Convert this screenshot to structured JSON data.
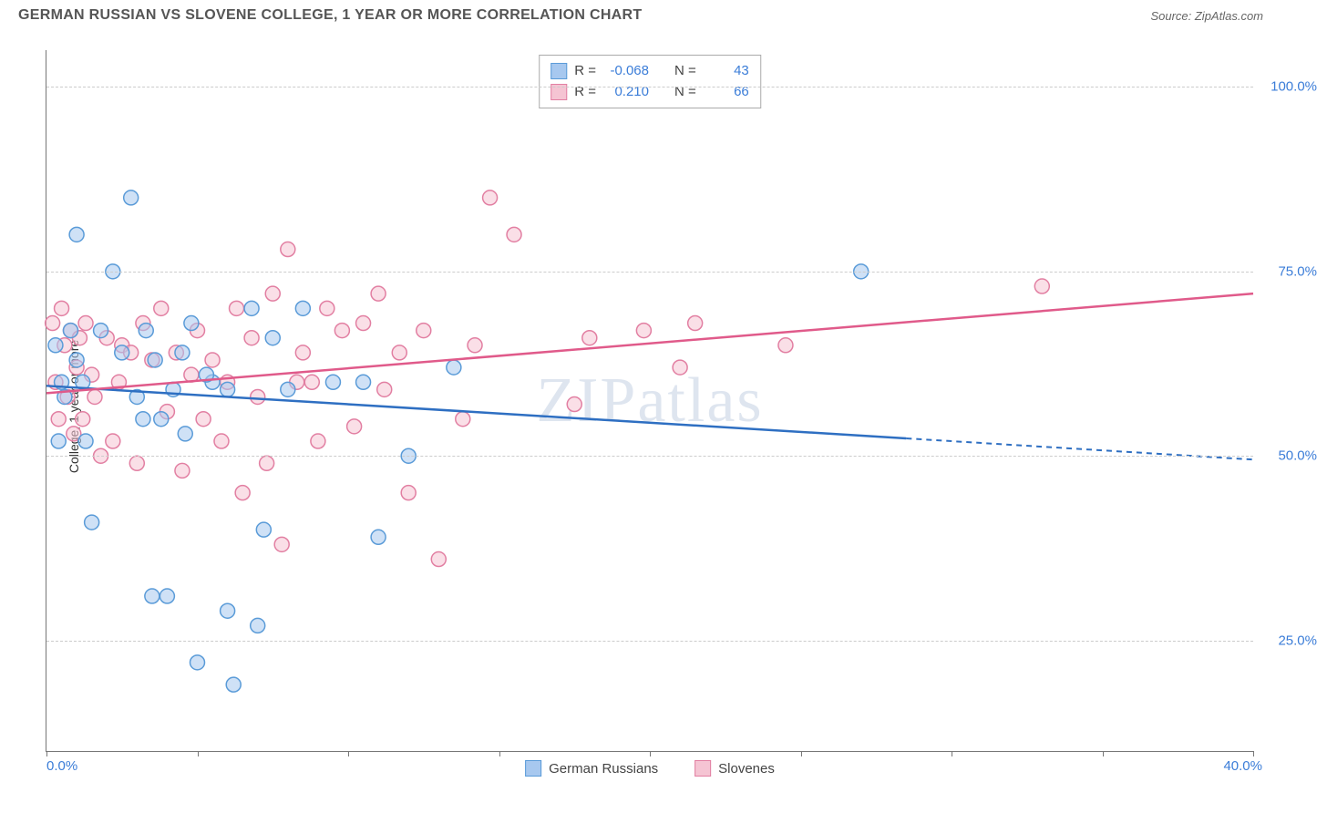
{
  "header": {
    "title": "GERMAN RUSSIAN VS SLOVENE COLLEGE, 1 YEAR OR MORE CORRELATION CHART",
    "source": "Source: ZipAtlas.com"
  },
  "y_axis": {
    "label": "College, 1 year or more",
    "ticks": [
      25,
      50,
      75,
      100
    ],
    "tick_labels": [
      "25.0%",
      "50.0%",
      "75.0%",
      "100.0%"
    ],
    "min": 10,
    "max": 105
  },
  "x_axis": {
    "ticks": [
      0,
      5,
      10,
      15,
      20,
      25,
      30,
      35,
      40
    ],
    "label_left": "0.0%",
    "label_right": "40.0%",
    "min": 0,
    "max": 40
  },
  "watermark": "ZIPatlas",
  "series": {
    "german_russians": {
      "label": "German Russians",
      "color_fill": "#a7c8ef",
      "color_stroke": "#5a9bd8",
      "line_color": "#2e6fc2",
      "r_value": "-0.068",
      "n_value": "43",
      "trend": {
        "x1": 0,
        "y1": 59.5,
        "x2": 40,
        "y2": 49.5,
        "solid_until_x": 28.5
      },
      "points": [
        [
          0.3,
          65
        ],
        [
          0.4,
          52
        ],
        [
          0.5,
          60
        ],
        [
          0.6,
          58
        ],
        [
          0.8,
          67
        ],
        [
          1.0,
          80
        ],
        [
          1.0,
          63
        ],
        [
          1.2,
          60
        ],
        [
          1.3,
          52
        ],
        [
          1.5,
          41
        ],
        [
          1.8,
          67
        ],
        [
          2.2,
          75
        ],
        [
          2.5,
          64
        ],
        [
          2.8,
          85
        ],
        [
          3.0,
          58
        ],
        [
          3.2,
          55
        ],
        [
          3.3,
          67
        ],
        [
          3.5,
          31
        ],
        [
          3.6,
          63
        ],
        [
          4.0,
          31
        ],
        [
          4.2,
          59
        ],
        [
          4.5,
          64
        ],
        [
          4.6,
          53
        ],
        [
          4.8,
          68
        ],
        [
          5.0,
          22
        ],
        [
          5.5,
          60
        ],
        [
          6.0,
          59
        ],
        [
          6.0,
          29
        ],
        [
          6.2,
          19
        ],
        [
          6.8,
          70
        ],
        [
          7.0,
          27
        ],
        [
          7.2,
          40
        ],
        [
          7.5,
          66
        ],
        [
          8.0,
          59
        ],
        [
          8.5,
          70
        ],
        [
          9.5,
          60
        ],
        [
          10.5,
          60
        ],
        [
          11.0,
          39
        ],
        [
          12.0,
          50
        ],
        [
          13.5,
          62
        ],
        [
          27.0,
          75
        ],
        [
          5.3,
          61
        ],
        [
          3.8,
          55
        ]
      ]
    },
    "slovenes": {
      "label": "Slovenes",
      "color_fill": "#f5c4d3",
      "color_stroke": "#e27fa2",
      "line_color": "#e05a8a",
      "r_value": "0.210",
      "n_value": "66",
      "trend": {
        "x1": 0,
        "y1": 58.5,
        "x2": 40,
        "y2": 72.0,
        "solid_until_x": 40
      },
      "points": [
        [
          0.2,
          68
        ],
        [
          0.3,
          60
        ],
        [
          0.4,
          55
        ],
        [
          0.5,
          70
        ],
        [
          0.6,
          65
        ],
        [
          0.7,
          58
        ],
        [
          0.8,
          67
        ],
        [
          0.9,
          53
        ],
        [
          1.0,
          62
        ],
        [
          1.1,
          66
        ],
        [
          1.2,
          55
        ],
        [
          1.3,
          68
        ],
        [
          1.5,
          61
        ],
        [
          1.6,
          58
        ],
        [
          1.8,
          50
        ],
        [
          2.0,
          66
        ],
        [
          2.2,
          52
        ],
        [
          2.4,
          60
        ],
        [
          2.5,
          65
        ],
        [
          2.8,
          64
        ],
        [
          3.0,
          49
        ],
        [
          3.2,
          68
        ],
        [
          3.5,
          63
        ],
        [
          3.8,
          70
        ],
        [
          4.0,
          56
        ],
        [
          4.3,
          64
        ],
        [
          4.5,
          48
        ],
        [
          4.8,
          61
        ],
        [
          5.0,
          67
        ],
        [
          5.2,
          55
        ],
        [
          5.5,
          63
        ],
        [
          5.8,
          52
        ],
        [
          6.0,
          60
        ],
        [
          6.3,
          70
        ],
        [
          6.5,
          45
        ],
        [
          6.8,
          66
        ],
        [
          7.0,
          58
        ],
        [
          7.3,
          49
        ],
        [
          7.5,
          72
        ],
        [
          7.8,
          38
        ],
        [
          8.0,
          78
        ],
        [
          8.3,
          60
        ],
        [
          8.5,
          64
        ],
        [
          9.0,
          52
        ],
        [
          9.3,
          70
        ],
        [
          9.8,
          67
        ],
        [
          10.2,
          54
        ],
        [
          10.5,
          68
        ],
        [
          11.0,
          72
        ],
        [
          11.2,
          59
        ],
        [
          11.7,
          64
        ],
        [
          12.0,
          45
        ],
        [
          12.5,
          67
        ],
        [
          13.0,
          36
        ],
        [
          13.8,
          55
        ],
        [
          14.2,
          65
        ],
        [
          14.7,
          85
        ],
        [
          15.5,
          80
        ],
        [
          17.5,
          57
        ],
        [
          18.0,
          66
        ],
        [
          19.8,
          67
        ],
        [
          21.0,
          62
        ],
        [
          21.5,
          68
        ],
        [
          24.5,
          65
        ],
        [
          33.0,
          73
        ],
        [
          8.8,
          60
        ]
      ]
    }
  },
  "legend_labels": {
    "r": "R =",
    "n": "N ="
  },
  "style": {
    "marker_radius": 8,
    "marker_opacity": 0.55,
    "grid_color": "#cccccc",
    "axis_color": "#777777",
    "tick_label_color": "#3b7dd8",
    "background": "#ffffff",
    "title_color": "#555555"
  }
}
